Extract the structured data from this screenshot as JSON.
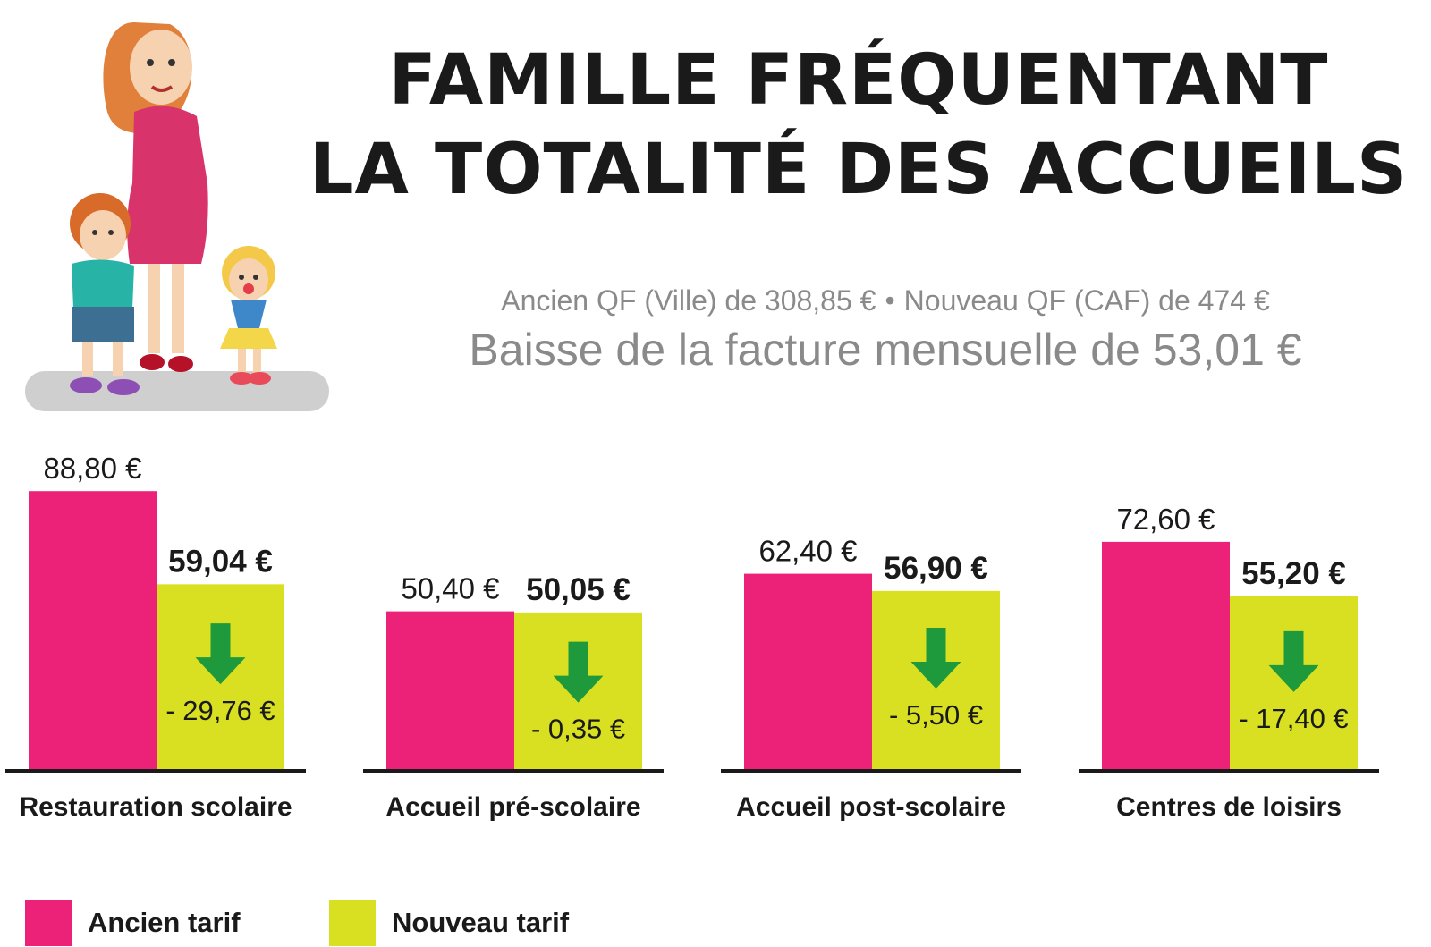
{
  "title": {
    "line1": "FAMILLE FRÉQUENTANT",
    "line2": "LA TOTALITÉ DES ACCUEILS"
  },
  "subtitle": {
    "ancien": "Ancien QF (Ville) de 308,85 €",
    "separator": "•",
    "nouveau": "Nouveau QF (CAF) de 474 €"
  },
  "headline": "Baisse de la facture mensuelle de 53,01 €",
  "colors": {
    "ancien": "#ec2279",
    "nouveau": "#d8e021",
    "arrow": "#1e9a3c",
    "axis": "#1a1a1a"
  },
  "legend": {
    "ancien_label": "Ancien tarif",
    "nouveau_label": "Nouveau tarif"
  },
  "chart_data": {
    "type": "bar",
    "categories": [
      "Restauration scolaire",
      "Accueil pré-scolaire",
      "Accueil post-scolaire",
      "Centres de loisirs"
    ],
    "series": [
      {
        "name": "Ancien tarif",
        "values": [
          88.8,
          50.4,
          62.4,
          72.6
        ],
        "labels": [
          "88,80 €",
          "50,40 €",
          "62,40 €",
          "72,60 €"
        ]
      },
      {
        "name": "Nouveau tarif",
        "values": [
          59.04,
          50.05,
          56.9,
          55.2
        ],
        "labels": [
          "59,04 €",
          "50,05 €",
          "56,90 €",
          "55,20 €"
        ]
      }
    ],
    "differences": [
      "- 29,76 €",
      "- 0,35 €",
      "- 5,50 €",
      "- 17,40 €"
    ]
  }
}
